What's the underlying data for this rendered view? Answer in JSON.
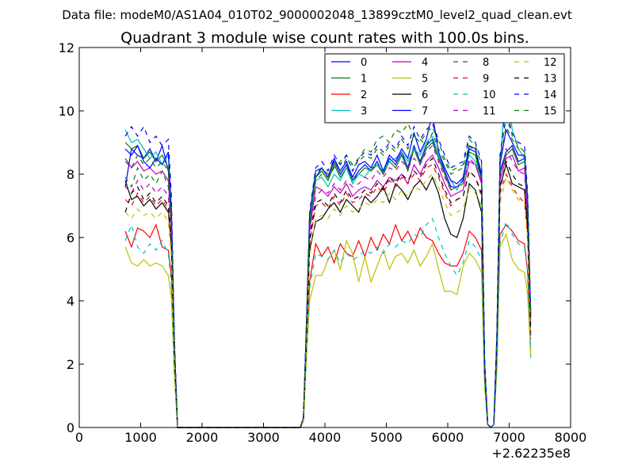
{
  "figure": {
    "suptitle": "Data file: modeM0/AS1A04_010T02_9000002048_13899cztM0_level2_quad_clean.evt"
  },
  "chart_data": {
    "type": "line",
    "title": "Quadrant 3 module wise count rates with 100.0s bins.",
    "xlabel": "",
    "ylabel": "",
    "x_offset_label": "+2.62235e8",
    "xlim": [
      0,
      8000
    ],
    "ylim": [
      0,
      12
    ],
    "x_ticks": [
      0,
      1000,
      2000,
      3000,
      4000,
      5000,
      6000,
      7000,
      8000
    ],
    "y_ticks": [
      0,
      2,
      4,
      6,
      8,
      10,
      12
    ],
    "grid": false,
    "legend_position": "top-right",
    "legend_columns": 4,
    "x": [
      750,
      850,
      950,
      1050,
      1150,
      1250,
      1350,
      1450,
      1500,
      1550,
      1600,
      3600,
      3650,
      3700,
      3750,
      3850,
      3950,
      4050,
      4150,
      4250,
      4350,
      4450,
      4550,
      4650,
      4750,
      4850,
      4950,
      5050,
      5150,
      5250,
      5350,
      5450,
      5550,
      5650,
      5750,
      5850,
      5950,
      6050,
      6150,
      6250,
      6350,
      6450,
      6550,
      6600,
      6650,
      6700,
      6750,
      6800,
      6850,
      6950,
      7050,
      7150,
      7250,
      7300,
      7350
    ],
    "series": [
      {
        "name": "0",
        "color": "#0000ff",
        "dash": false,
        "values": [
          7.6,
          8.8,
          8.6,
          8.5,
          8.8,
          8.4,
          8.9,
          8.1,
          6.5,
          2.5,
          0,
          0,
          0.3,
          3.2,
          6.4,
          7.9,
          8.2,
          7.9,
          8.4,
          8.0,
          8.3,
          7.8,
          8.1,
          8.3,
          8.1,
          8.4,
          8.0,
          8.5,
          8.3,
          8.7,
          8.2,
          8.9,
          8.4,
          8.9,
          9.1,
          8.6,
          8.1,
          7.6,
          7.6,
          7.8,
          8.8,
          8.7,
          7.9,
          2.0,
          0.1,
          0,
          0.1,
          2.8,
          8.1,
          8.7,
          8.9,
          8.4,
          8.5,
          7.1,
          3.5
        ]
      },
      {
        "name": "1",
        "color": "#008000",
        "dash": false,
        "values": [
          9.0,
          8.8,
          8.9,
          8.5,
          8.7,
          8.4,
          8.6,
          8.2,
          6.7,
          2.6,
          0,
          0,
          0.3,
          3.3,
          6.5,
          7.9,
          8.1,
          7.8,
          8.3,
          7.9,
          8.2,
          7.8,
          8.0,
          8.2,
          8.1,
          8.3,
          8.0,
          8.4,
          8.2,
          8.6,
          8.1,
          8.8,
          8.3,
          8.8,
          9.0,
          8.5,
          8.0,
          7.5,
          7.6,
          7.7,
          8.7,
          8.6,
          7.8,
          2.0,
          0.1,
          0,
          0.1,
          2.7,
          8.0,
          8.6,
          8.8,
          8.3,
          8.4,
          7.0,
          3.4
        ]
      },
      {
        "name": "2",
        "color": "#ff0000",
        "dash": false,
        "values": [
          6.2,
          5.7,
          6.3,
          6.2,
          6.0,
          6.4,
          5.7,
          5.6,
          4.8,
          2.0,
          0,
          0,
          0.2,
          2.5,
          4.6,
          5.8,
          5.4,
          5.7,
          5.2,
          5.8,
          5.5,
          5.4,
          5.9,
          5.4,
          6.0,
          5.6,
          6.1,
          5.8,
          6.4,
          5.9,
          6.2,
          5.8,
          6.3,
          6.0,
          5.9,
          5.5,
          5.2,
          5.1,
          5.1,
          5.5,
          6.2,
          6.0,
          5.6,
          1.6,
          0.1,
          0,
          0.1,
          2.1,
          6.1,
          6.4,
          6.2,
          5.9,
          5.8,
          4.9,
          2.4
        ]
      },
      {
        "name": "3",
        "color": "#00bfbf",
        "dash": false,
        "values": [
          9.4,
          9.0,
          9.1,
          8.8,
          8.5,
          8.7,
          8.3,
          8.6,
          6.8,
          2.6,
          0,
          0,
          0.3,
          3.3,
          6.6,
          7.8,
          7.9,
          7.6,
          8.0,
          7.8,
          8.2,
          7.7,
          8.0,
          7.9,
          8.2,
          8.3,
          8.1,
          8.4,
          8.5,
          8.7,
          8.4,
          8.8,
          8.6,
          9.0,
          9.2,
          8.6,
          8.2,
          7.8,
          7.5,
          7.9,
          8.6,
          8.4,
          7.8,
          2.0,
          0.1,
          0,
          0.1,
          2.9,
          8.2,
          11.1,
          9.4,
          8.8,
          8.5,
          6.8,
          2.2
        ]
      },
      {
        "name": "4",
        "color": "#bf00bf",
        "dash": false,
        "values": [
          8.5,
          8.2,
          8.4,
          8.1,
          8.2,
          8.0,
          8.1,
          7.8,
          6.3,
          2.5,
          0,
          0,
          0.3,
          3.1,
          6.2,
          7.6,
          7.5,
          7.3,
          7.6,
          7.4,
          7.7,
          7.3,
          7.5,
          7.6,
          7.5,
          7.8,
          7.6,
          7.9,
          7.8,
          8.0,
          7.7,
          8.3,
          8.0,
          8.4,
          8.6,
          8.2,
          7.7,
          7.3,
          7.4,
          7.5,
          8.4,
          8.3,
          7.7,
          1.9,
          0.1,
          0,
          0.1,
          2.7,
          7.8,
          8.5,
          8.6,
          8.1,
          8.2,
          6.7,
          3.3
        ]
      },
      {
        "name": "5",
        "color": "#bfbf00",
        "dash": false,
        "values": [
          5.7,
          5.2,
          5.1,
          5.3,
          5.1,
          5.2,
          5.1,
          4.8,
          4.1,
          1.6,
          0,
          0,
          0.2,
          2.2,
          4.0,
          4.8,
          4.8,
          5.3,
          5.6,
          5.0,
          5.9,
          5.5,
          4.6,
          5.4,
          4.6,
          5.1,
          5.6,
          5.0,
          5.4,
          5.5,
          5.2,
          5.6,
          5.1,
          5.4,
          5.8,
          5.0,
          4.3,
          4.3,
          4.2,
          5.1,
          5.5,
          5.3,
          4.9,
          1.3,
          0.1,
          0,
          0.1,
          1.8,
          5.7,
          6.1,
          5.3,
          5.0,
          4.9,
          4.2,
          2.3
        ]
      },
      {
        "name": "6",
        "color": "#000000",
        "dash": false,
        "values": [
          7.8,
          7.2,
          7.3,
          7.0,
          7.2,
          6.9,
          7.1,
          6.8,
          5.8,
          2.2,
          0,
          0,
          0.3,
          2.8,
          5.6,
          6.5,
          6.6,
          6.9,
          7.1,
          6.8,
          7.2,
          7.0,
          6.8,
          7.3,
          7.1,
          7.3,
          7.6,
          7.1,
          7.7,
          7.5,
          7.2,
          7.6,
          7.8,
          7.5,
          7.9,
          7.4,
          6.6,
          6.1,
          6.0,
          6.6,
          7.7,
          7.5,
          6.8,
          1.7,
          0.1,
          0,
          0.1,
          2.4,
          7.6,
          8.3,
          7.7,
          7.6,
          7.5,
          6.3,
          2.9
        ]
      },
      {
        "name": "7",
        "color": "#0000ff",
        "dash": false,
        "values": [
          8.8,
          8.6,
          8.9,
          8.4,
          8.2,
          8.5,
          8.3,
          8.7,
          6.9,
          2.6,
          0,
          0,
          0.3,
          3.3,
          6.7,
          8.1,
          8.2,
          7.9,
          8.5,
          8.1,
          8.4,
          7.9,
          8.3,
          8.4,
          8.2,
          8.6,
          8.1,
          8.6,
          8.4,
          8.8,
          8.5,
          9.3,
          8.7,
          9.1,
          9.9,
          8.7,
          8.2,
          7.8,
          7.7,
          7.9,
          8.9,
          8.8,
          8.0,
          2.1,
          0.1,
          0,
          0.1,
          2.9,
          8.3,
          9.4,
          9.0,
          8.6,
          8.6,
          7.2,
          3.6
        ]
      },
      {
        "name": "8",
        "color": "#008000",
        "dash": true,
        "values": [
          7.9,
          7.6,
          8.2,
          7.8,
          8.0,
          7.7,
          8.1,
          7.6,
          6.2,
          2.4,
          0,
          0,
          0.3,
          3.1,
          6.4,
          7.8,
          8.0,
          7.9,
          8.2,
          8.4,
          8.6,
          8.3,
          8.5,
          8.8,
          8.7,
          9.1,
          9.2,
          9.0,
          9.4,
          9.3,
          9.6,
          9.2,
          9.1,
          8.9,
          9.3,
          8.8,
          8.4,
          8.0,
          8.1,
          8.2,
          8.9,
          8.7,
          8.1,
          2.0,
          0.1,
          0,
          0.1,
          2.8,
          8.4,
          10.3,
          9.2,
          8.9,
          8.7,
          7.3,
          3.5
        ]
      },
      {
        "name": "9",
        "color": "#ff0000",
        "dash": true,
        "values": [
          7.2,
          7.0,
          7.4,
          7.1,
          7.3,
          7.0,
          7.2,
          6.9,
          5.7,
          2.2,
          0,
          0,
          0.3,
          2.8,
          5.8,
          7.0,
          7.1,
          6.9,
          7.3,
          7.0,
          7.4,
          7.1,
          7.2,
          7.4,
          7.3,
          7.6,
          7.4,
          7.8,
          7.6,
          7.9,
          7.7,
          8.0,
          7.8,
          8.2,
          8.3,
          7.9,
          7.4,
          7.0,
          7.2,
          7.3,
          8.1,
          7.9,
          7.3,
          1.8,
          0.1,
          0,
          0.1,
          2.5,
          7.4,
          8.0,
          7.6,
          7.3,
          7.1,
          6.0,
          2.8
        ]
      },
      {
        "name": "10",
        "color": "#00bfbf",
        "dash": true,
        "values": [
          5.9,
          6.4,
          5.7,
          5.5,
          5.8,
          5.6,
          5.9,
          5.5,
          4.5,
          1.8,
          0,
          0,
          0.2,
          2.3,
          4.4,
          5.5,
          5.4,
          5.3,
          5.6,
          5.2,
          5.5,
          5.3,
          5.4,
          5.6,
          5.5,
          5.7,
          5.5,
          5.8,
          5.7,
          5.9,
          5.8,
          6.1,
          6.0,
          6.4,
          6.6,
          6.0,
          5.5,
          5.1,
          4.8,
          5.2,
          5.9,
          5.7,
          5.3,
          1.4,
          0.1,
          0,
          0.1,
          1.9,
          5.8,
          6.5,
          6.1,
          5.8,
          5.7,
          4.9,
          2.5
        ]
      },
      {
        "name": "11",
        "color": "#bf00bf",
        "dash": true,
        "values": [
          7.6,
          7.4,
          7.8,
          7.5,
          7.7,
          7.4,
          7.6,
          7.3,
          6.0,
          2.3,
          0,
          0,
          0.3,
          2.9,
          6.0,
          7.3,
          7.5,
          7.4,
          7.7,
          7.5,
          7.8,
          7.6,
          7.7,
          7.9,
          7.8,
          8.1,
          7.9,
          8.2,
          8.1,
          8.4,
          8.2,
          8.5,
          8.3,
          8.7,
          8.9,
          8.4,
          7.9,
          7.5,
          7.6,
          7.7,
          8.5,
          8.3,
          7.8,
          1.9,
          0.1,
          0,
          0.1,
          2.7,
          7.9,
          8.8,
          8.4,
          8.1,
          8.0,
          6.7,
          3.2
        ]
      },
      {
        "name": "12",
        "color": "#bfbf00",
        "dash": true,
        "values": [
          6.8,
          6.6,
          6.9,
          6.7,
          6.8,
          6.6,
          6.8,
          6.5,
          5.4,
          2.1,
          0,
          0,
          0.2,
          2.7,
          5.4,
          6.6,
          6.7,
          6.6,
          6.9,
          6.7,
          7.0,
          6.8,
          6.9,
          7.1,
          7.0,
          7.2,
          7.1,
          7.4,
          7.2,
          7.5,
          7.3,
          7.6,
          7.5,
          7.8,
          8.0,
          7.6,
          7.1,
          6.7,
          6.8,
          6.9,
          7.6,
          7.4,
          7.0,
          1.7,
          0.1,
          0,
          0.1,
          2.4,
          7.1,
          7.9,
          7.5,
          7.2,
          7.1,
          6.0,
          2.9
        ]
      },
      {
        "name": "13",
        "color": "#000000",
        "dash": true,
        "values": [
          6.8,
          7.4,
          7.6,
          7.2,
          7.4,
          7.1,
          7.3,
          7.0,
          5.8,
          2.2,
          0,
          0,
          0.3,
          2.8,
          5.9,
          7.1,
          7.2,
          7.0,
          7.4,
          7.1,
          7.5,
          7.2,
          7.3,
          7.5,
          7.4,
          7.7,
          7.5,
          7.9,
          7.7,
          8.0,
          7.8,
          8.1,
          7.9,
          8.3,
          8.5,
          8.0,
          7.5,
          7.1,
          7.2,
          7.3,
          8.1,
          7.9,
          7.4,
          1.8,
          0.1,
          0,
          0.1,
          2.6,
          7.5,
          8.4,
          8.0,
          7.7,
          7.6,
          6.4,
          3.0
        ]
      },
      {
        "name": "14",
        "color": "#0000ff",
        "dash": true,
        "values": [
          9.2,
          9.5,
          9.2,
          9.5,
          9.0,
          9.2,
          8.9,
          9.1,
          7.3,
          2.8,
          0,
          0,
          0.3,
          3.4,
          6.8,
          8.2,
          8.4,
          8.1,
          8.6,
          8.3,
          8.6,
          8.1,
          8.5,
          8.7,
          8.6,
          8.9,
          8.7,
          9.0,
          8.8,
          9.2,
          8.9,
          9.5,
          9.1,
          9.4,
          9.6,
          9.1,
          8.6,
          8.2,
          8.3,
          8.4,
          9.2,
          9.0,
          8.4,
          2.1,
          0.1,
          0,
          0.1,
          3.0,
          8.6,
          9.8,
          9.3,
          9.0,
          8.9,
          7.4,
          3.7
        ]
      },
      {
        "name": "15",
        "color": "#008000",
        "dash": true,
        "values": [
          8.4,
          8.2,
          8.6,
          8.3,
          8.5,
          8.2,
          8.4,
          8.1,
          6.6,
          2.5,
          0,
          0,
          0.3,
          3.2,
          6.6,
          8.0,
          8.2,
          8.0,
          8.4,
          8.1,
          8.5,
          8.2,
          8.4,
          8.6,
          8.5,
          8.8,
          8.6,
          8.9,
          8.7,
          9.1,
          8.8,
          9.2,
          9.0,
          9.3,
          9.5,
          9.0,
          8.5,
          8.1,
          8.2,
          8.3,
          9.1,
          8.9,
          8.3,
          2.1,
          0.1,
          0,
          0.1,
          2.9,
          8.5,
          9.5,
          9.1,
          8.8,
          8.7,
          7.3,
          3.6
        ]
      }
    ]
  }
}
